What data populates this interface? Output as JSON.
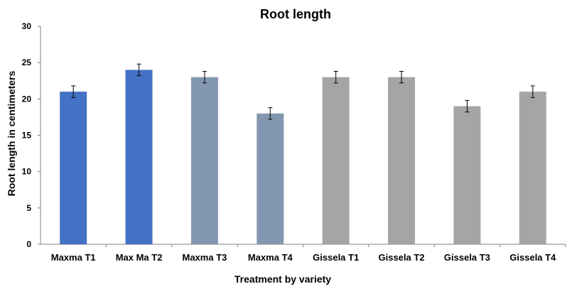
{
  "chart_data": {
    "type": "bar",
    "title": "Root length",
    "xlabel": "Treatment by variety",
    "ylabel": "Root length in centimeters",
    "categories": [
      "Maxma T1",
      "Max Ma T2",
      "Maxma T3",
      "Maxma T4",
      "Gissela T1",
      "Gissela T2",
      "Gissela T3",
      "Gissela T4"
    ],
    "values": [
      21,
      24,
      23,
      18,
      23,
      23,
      19,
      21
    ],
    "error": [
      0.8,
      0.8,
      0.8,
      0.8,
      0.8,
      0.8,
      0.8,
      0.8
    ],
    "bar_colors": [
      "#4472C4",
      "#4472C4",
      "#8497B0",
      "#8497B0",
      "#A5A5A5",
      "#A5A5A5",
      "#A5A5A5",
      "#A5A5A5"
    ],
    "ylim": [
      0,
      30
    ],
    "yticks": [
      0,
      5,
      10,
      15,
      20,
      25,
      30
    ],
    "grid": false,
    "legend": "none"
  }
}
